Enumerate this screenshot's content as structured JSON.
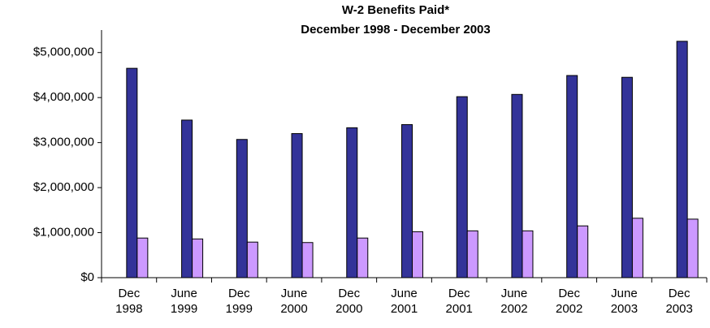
{
  "chart_data": {
    "type": "bar",
    "title": "W-2 Benefits Paid*",
    "subtitle": "December 1998 - December 2003",
    "categories": [
      "Dec 1998",
      "June 1999",
      "Dec 1999",
      "June 2000",
      "Dec 2000",
      "June 2001",
      "Dec 2001",
      "June 2002",
      "Dec 2002",
      "June 2003",
      "Dec 2003"
    ],
    "series": [
      {
        "color": "#333399",
        "values": [
          4650000,
          3500000,
          3070000,
          3200000,
          3330000,
          3400000,
          4020000,
          4070000,
          4490000,
          4450000,
          5250000
        ]
      },
      {
        "color": "#cc99ff",
        "values": [
          880000,
          860000,
          790000,
          780000,
          880000,
          1020000,
          1040000,
          1040000,
          1150000,
          1320000,
          1300000
        ]
      }
    ],
    "ylim": [
      0,
      5500000
    ],
    "yticks": [
      {
        "value": 0,
        "label": "$0"
      },
      {
        "value": 1000000,
        "label": "$1,000,000"
      },
      {
        "value": 2000000,
        "label": "$2,000,000"
      },
      {
        "value": 3000000,
        "label": "$3,000,000"
      },
      {
        "value": 4000000,
        "label": "$4,000,000"
      },
      {
        "value": 5000000,
        "label": "$5,000,000"
      }
    ]
  }
}
